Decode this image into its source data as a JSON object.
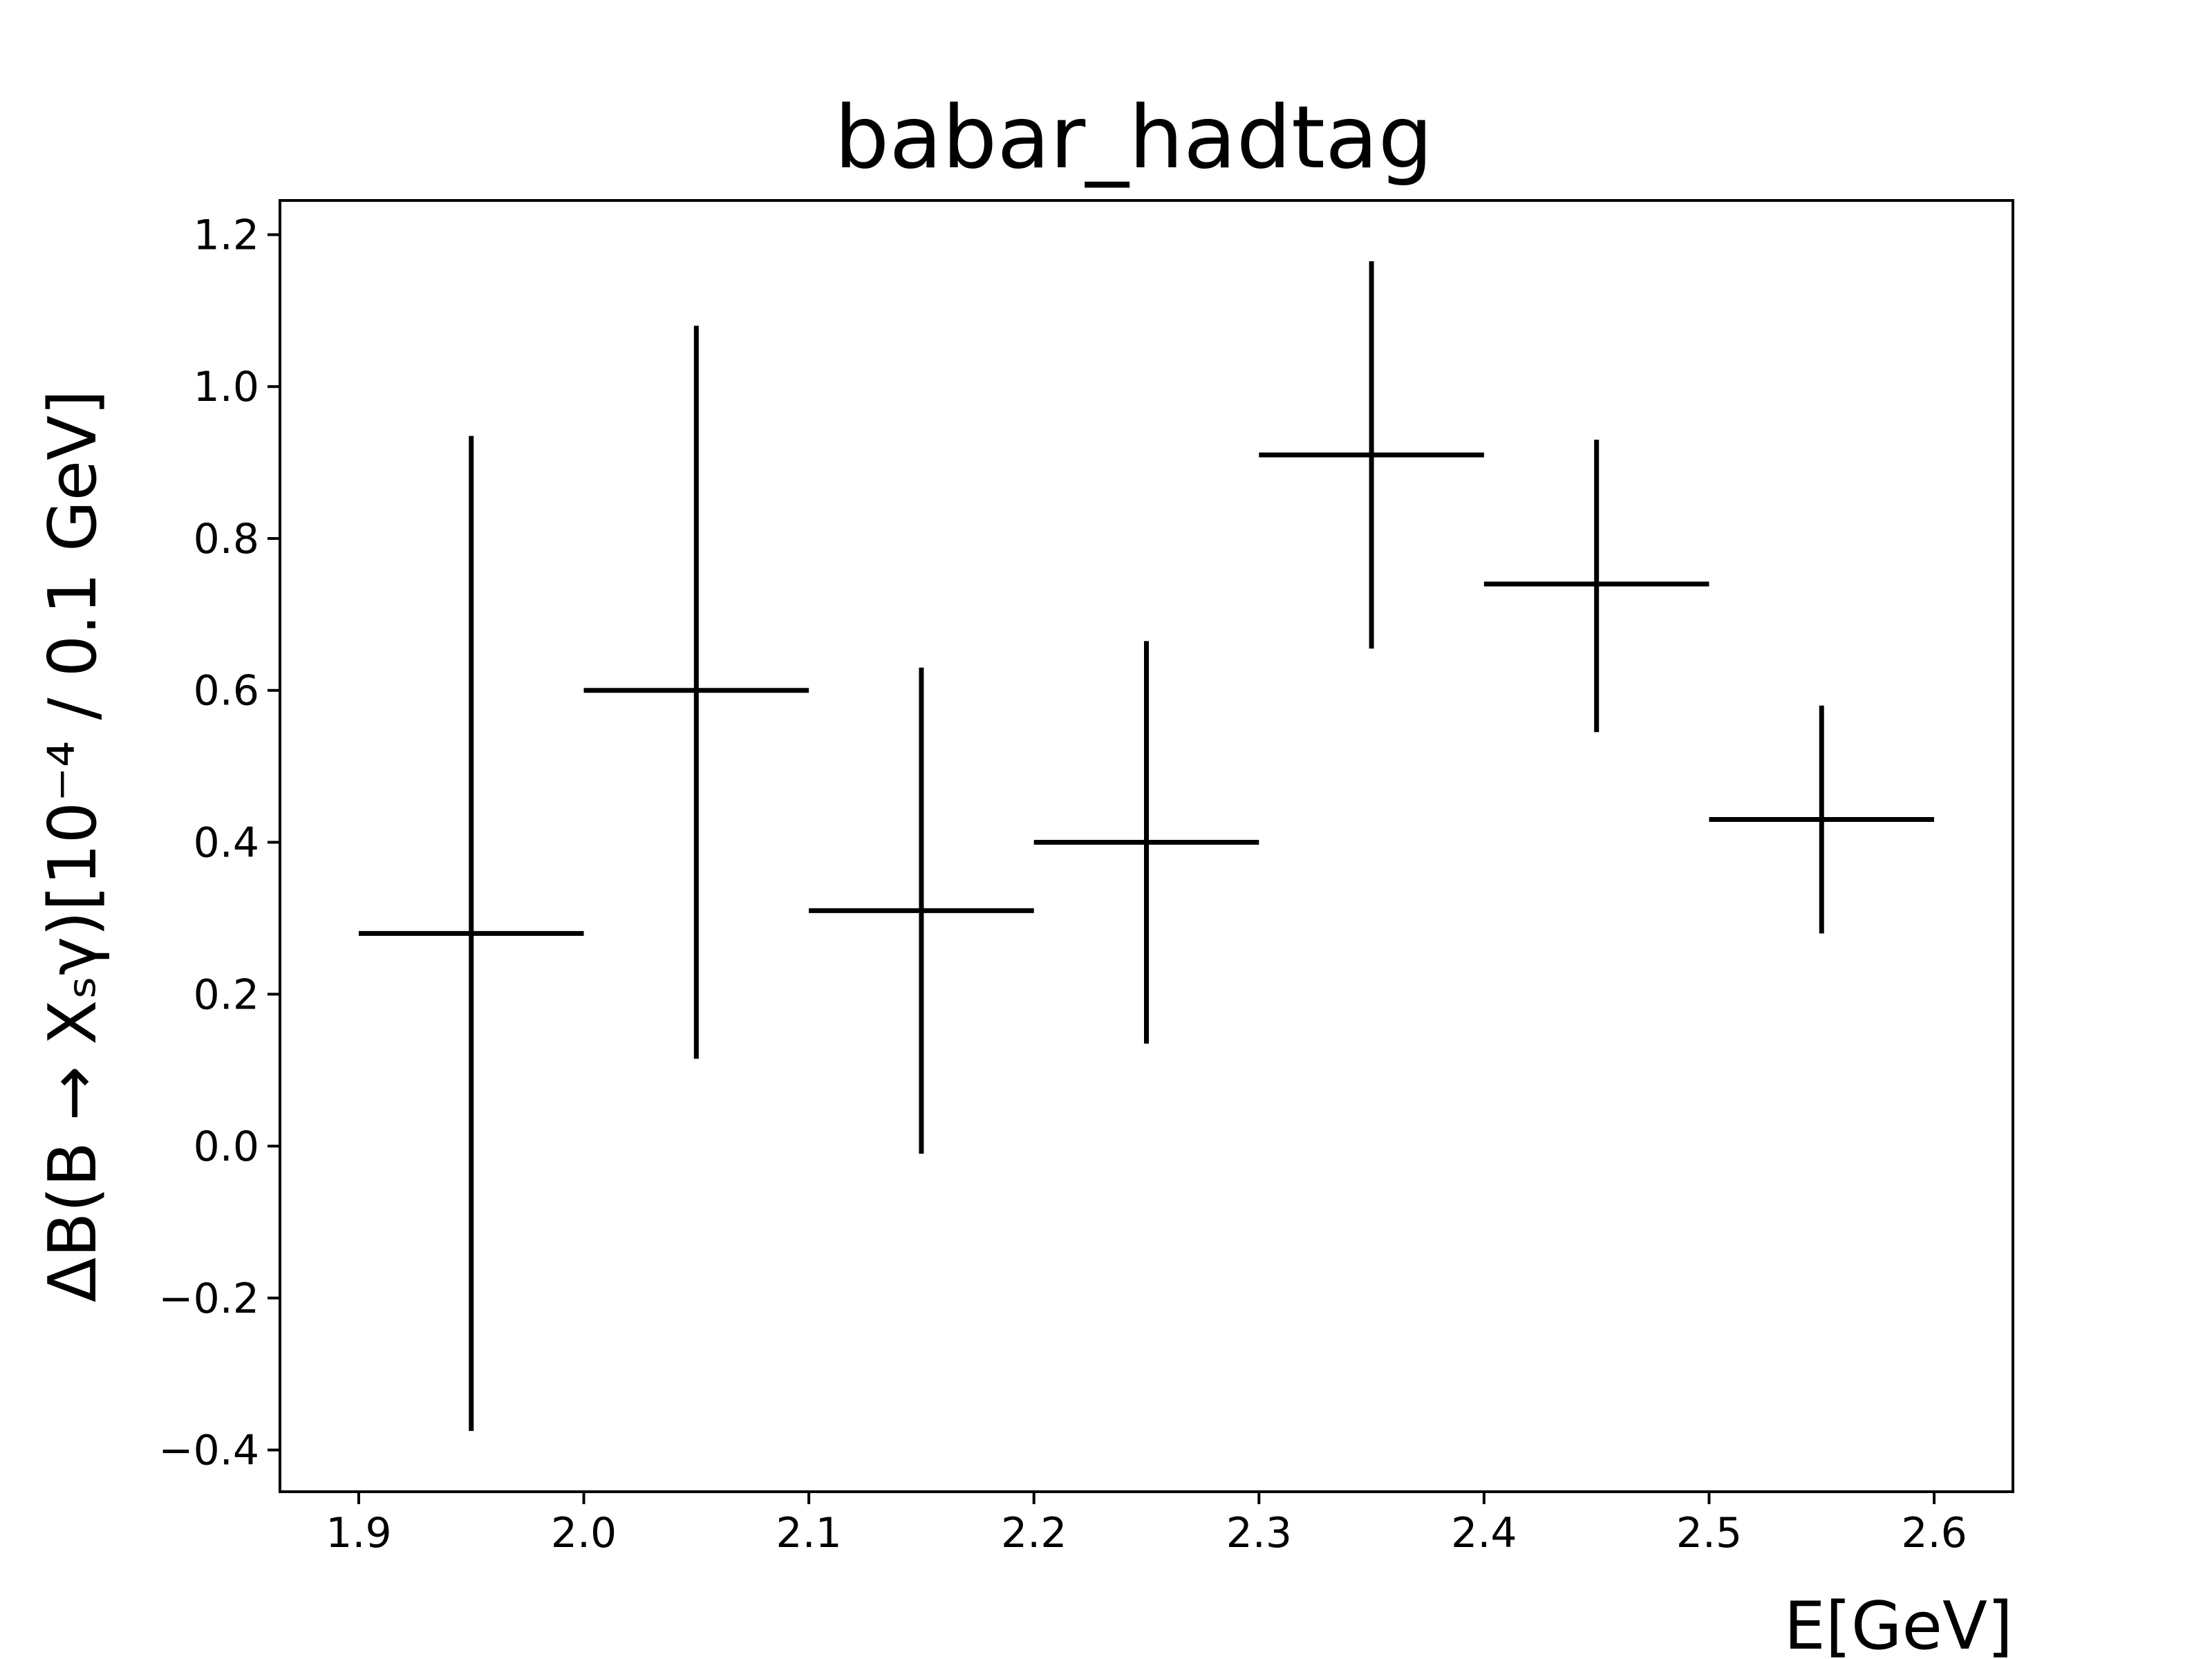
{
  "chart_data": {
    "type": "errorbar",
    "title": "babar_hadtag",
    "xlabel": "E[GeV]",
    "ylabel": "ΔB(B → Xₛγ)[10⁻⁴   / 0.1 GeV]",
    "xlim": [
      1.865,
      2.635
    ],
    "ylim": [
      -0.455,
      1.245
    ],
    "xticks": [
      1.9,
      2.0,
      2.1,
      2.2,
      2.3,
      2.4,
      2.5,
      2.6
    ],
    "xtick_labels": [
      "1.9",
      "2.0",
      "2.1",
      "2.2",
      "2.3",
      "2.4",
      "2.5",
      "2.6"
    ],
    "yticks": [
      -0.4,
      -0.2,
      0.0,
      0.2,
      0.4,
      0.6,
      0.8,
      1.0,
      1.2
    ],
    "ytick_labels": [
      "−0.4",
      "−0.2",
      "0.0",
      "0.2",
      "0.4",
      "0.6",
      "0.8",
      "1.0",
      "1.2"
    ],
    "grid": false,
    "color": "#000000",
    "points": [
      {
        "x": 1.95,
        "x_err": 0.05,
        "y": 0.28,
        "y_low": -0.375,
        "y_high": 0.935
      },
      {
        "x": 2.05,
        "x_err": 0.05,
        "y": 0.6,
        "y_low": 0.115,
        "y_high": 1.08
      },
      {
        "x": 2.15,
        "x_err": 0.05,
        "y": 0.31,
        "y_low": -0.01,
        "y_high": 0.63
      },
      {
        "x": 2.25,
        "x_err": 0.05,
        "y": 0.4,
        "y_low": 0.135,
        "y_high": 0.665
      },
      {
        "x": 2.35,
        "x_err": 0.05,
        "y": 0.91,
        "y_low": 0.655,
        "y_high": 1.165
      },
      {
        "x": 2.45,
        "x_err": 0.05,
        "y": 0.74,
        "y_low": 0.545,
        "y_high": 0.93
      },
      {
        "x": 2.55,
        "x_err": 0.05,
        "y": 0.43,
        "y_low": 0.28,
        "y_high": 0.58
      }
    ]
  }
}
